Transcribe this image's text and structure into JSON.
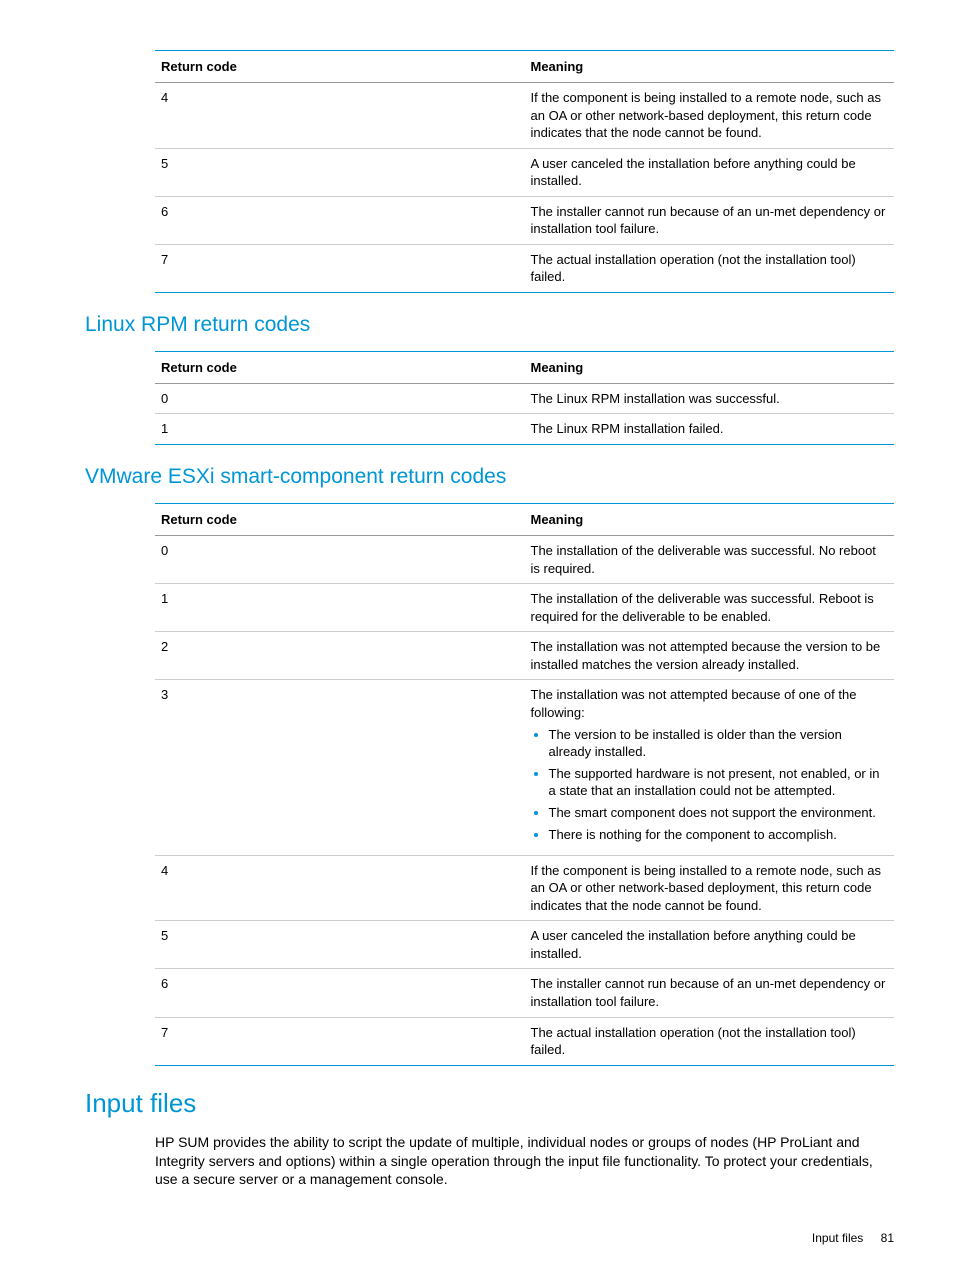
{
  "colors": {
    "accent": "#0096d6",
    "table_border_top_bottom": "#0096d6",
    "row_border": "#cccccc",
    "header_border": "#999999",
    "text": "#000000",
    "background": "#ffffff"
  },
  "fonts": {
    "body_size_pt": 10,
    "h1_size_pt": 20,
    "h2_size_pt": 16
  },
  "table1": {
    "columns": [
      "Return code",
      "Meaning"
    ],
    "col_widths_pct": [
      50,
      50
    ],
    "rows": [
      [
        "4",
        "If the component is being installed to a remote node, such as an OA or other network-based deployment, this return code indicates that the node cannot be found."
      ],
      [
        "5",
        "A user canceled the installation before anything could be installed."
      ],
      [
        "6",
        "The installer cannot run because of an un-met dependency or installation tool failure."
      ],
      [
        "7",
        "The actual installation operation (not the installation tool) failed."
      ]
    ]
  },
  "heading_rpm": "Linux RPM return codes",
  "table2": {
    "columns": [
      "Return code",
      "Meaning"
    ],
    "col_widths_pct": [
      50,
      50
    ],
    "rows": [
      [
        "0",
        "The Linux RPM installation was successful."
      ],
      [
        "1",
        "The Linux RPM installation failed."
      ]
    ]
  },
  "heading_esxi": "VMware ESXi smart-component return codes",
  "table3": {
    "columns": [
      "Return code",
      "Meaning"
    ],
    "col_widths_pct": [
      50,
      50
    ],
    "rows": [
      {
        "code": "0",
        "meaning": "The installation of the deliverable was successful. No reboot is required."
      },
      {
        "code": "1",
        "meaning": "The installation of the deliverable was successful. Reboot is required for the deliverable to be enabled."
      },
      {
        "code": "2",
        "meaning": "The installation was not attempted because the version to be installed matches the version already installed."
      },
      {
        "code": "3",
        "intro": "The installation was not attempted because of one of the following:",
        "bullets": [
          "The version to be installed is older than the version already installed.",
          "The supported hardware is not present, not enabled, or in a state that an installation could not be attempted.",
          "The smart component does not support the environment.",
          "There is nothing for the component to accomplish."
        ]
      },
      {
        "code": "4",
        "meaning": "If the component is being installed to a remote node, such as an OA or other network-based deployment, this return code indicates that the node cannot be found."
      },
      {
        "code": "5",
        "meaning": "A user canceled the installation before anything could be installed."
      },
      {
        "code": "6",
        "meaning": "The installer cannot run because of an un-met dependency or installation tool failure."
      },
      {
        "code": "7",
        "meaning": "The actual installation operation (not the installation tool) failed."
      }
    ]
  },
  "heading_input": "Input files",
  "body_para": "HP SUM provides the ability to script the update of multiple, individual nodes or groups of nodes (HP ProLiant and Integrity servers and options) within a single operation through the input file functionality. To protect your credentials, use a secure server or a management console.",
  "footer": {
    "section": "Input files",
    "page": "81"
  }
}
